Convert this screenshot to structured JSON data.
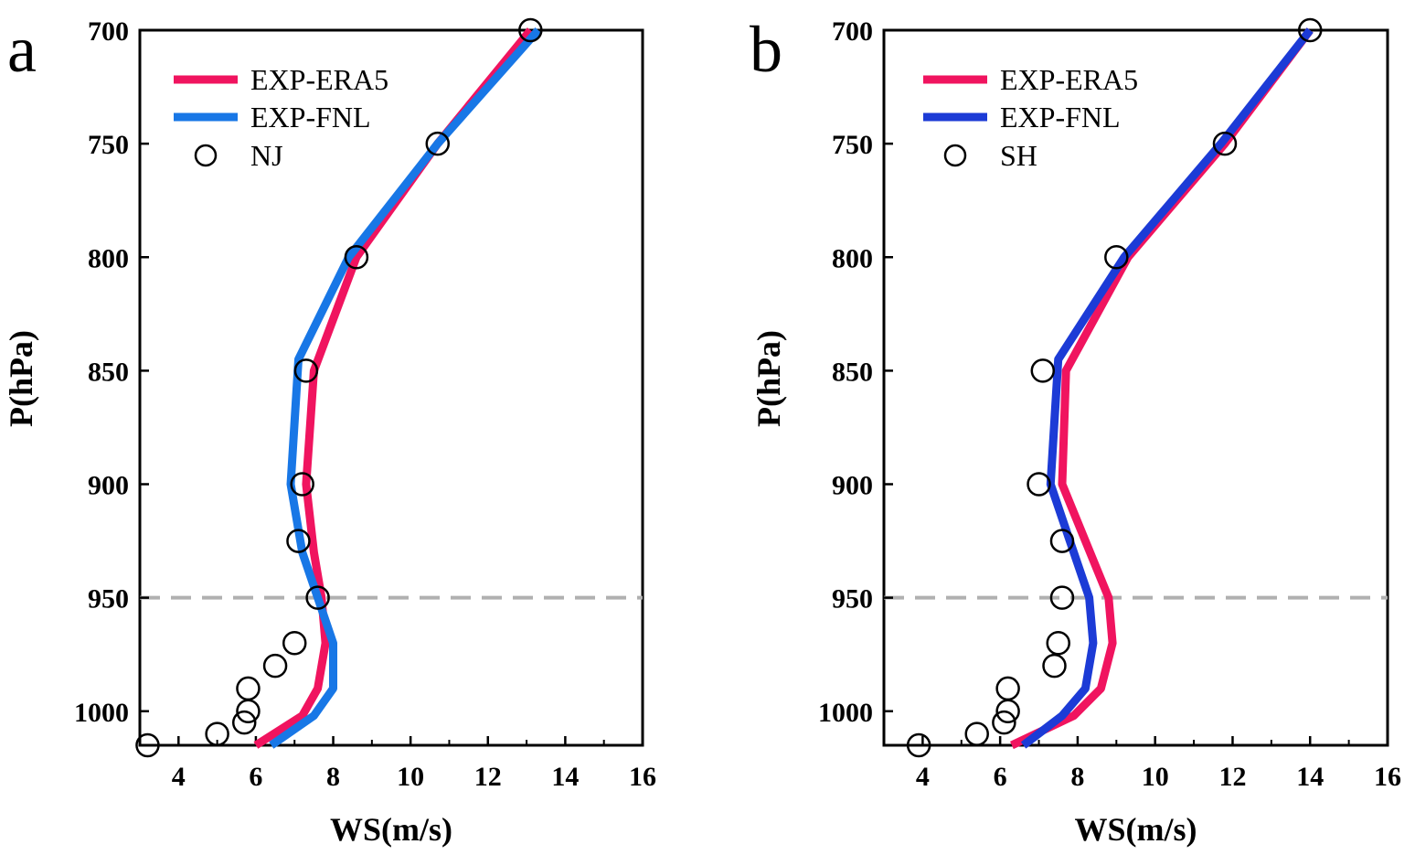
{
  "chart_data": [
    {
      "type": "line",
      "panel_label": "a",
      "xlabel": "WS(m/s)",
      "ylabel": "P(hPa)",
      "xlim": [
        3,
        16
      ],
      "ylim": [
        1015,
        700
      ],
      "y_reversed": true,
      "xticks": [
        4,
        6,
        8,
        10,
        12,
        14,
        16
      ],
      "yticks": [
        700,
        750,
        800,
        850,
        900,
        950,
        1000
      ],
      "reference_line": {
        "y": 950,
        "style": "dashed",
        "color": "#b0b0b0"
      },
      "legend_position": "top-left",
      "series": [
        {
          "name": "EXP-ERA5",
          "style": "line",
          "color": "#f0145f",
          "points": [
            [
              13.1,
              700
            ],
            [
              10.7,
              750
            ],
            [
              8.6,
              800
            ],
            [
              7.5,
              850
            ],
            [
              7.3,
              900
            ],
            [
              7.5,
              930
            ],
            [
              7.7,
              950
            ],
            [
              7.8,
              970
            ],
            [
              7.6,
              990
            ],
            [
              7.2,
              1002
            ],
            [
              6.0,
              1015
            ]
          ]
        },
        {
          "name": "EXP-FNL",
          "style": "line",
          "color": "#1877e6",
          "points": [
            [
              13.3,
              700
            ],
            [
              10.7,
              750
            ],
            [
              8.4,
              800
            ],
            [
              7.1,
              845
            ],
            [
              6.9,
              900
            ],
            [
              7.2,
              930
            ],
            [
              7.6,
              950
            ],
            [
              8.0,
              970
            ],
            [
              8.0,
              990
            ],
            [
              7.5,
              1002
            ],
            [
              6.4,
              1015
            ]
          ]
        },
        {
          "name": "NJ",
          "style": "marker",
          "marker": "open-circle",
          "color": "#000000",
          "points": [
            [
              13.1,
              700
            ],
            [
              10.7,
              750
            ],
            [
              8.6,
              800
            ],
            [
              7.3,
              850
            ],
            [
              7.2,
              900
            ],
            [
              7.1,
              925
            ],
            [
              7.6,
              950
            ],
            [
              7.0,
              970
            ],
            [
              6.5,
              980
            ],
            [
              5.8,
              990
            ],
            [
              5.8,
              1000
            ],
            [
              5.7,
              1005
            ],
            [
              5.0,
              1010
            ],
            [
              3.2,
              1015
            ]
          ]
        }
      ]
    },
    {
      "type": "line",
      "panel_label": "b",
      "xlabel": "WS(m/s)",
      "ylabel": "P(hPa)",
      "xlim": [
        3,
        16
      ],
      "ylim": [
        1015,
        700
      ],
      "y_reversed": true,
      "xticks": [
        4,
        6,
        8,
        10,
        12,
        14,
        16
      ],
      "yticks": [
        700,
        750,
        800,
        850,
        900,
        950,
        1000
      ],
      "reference_line": {
        "y": 950,
        "style": "dashed",
        "color": "#b0b0b0"
      },
      "legend_position": "top-left",
      "series": [
        {
          "name": "EXP-ERA5",
          "style": "line",
          "color": "#f0145f",
          "points": [
            [
              14.0,
              700
            ],
            [
              11.8,
              750
            ],
            [
              9.3,
              800
            ],
            [
              7.7,
              850
            ],
            [
              7.6,
              900
            ],
            [
              8.2,
              925
            ],
            [
              8.8,
              950
            ],
            [
              8.9,
              970
            ],
            [
              8.6,
              990
            ],
            [
              7.9,
              1002
            ],
            [
              6.3,
              1015
            ]
          ]
        },
        {
          "name": "EXP-FNL",
          "style": "line",
          "color": "#1c3bd6",
          "points": [
            [
              14.0,
              700
            ],
            [
              11.7,
              750
            ],
            [
              9.2,
              800
            ],
            [
              7.5,
              845
            ],
            [
              7.3,
              900
            ],
            [
              7.8,
              925
            ],
            [
              8.3,
              950
            ],
            [
              8.4,
              970
            ],
            [
              8.2,
              990
            ],
            [
              7.6,
              1002
            ],
            [
              6.6,
              1015
            ]
          ]
        },
        {
          "name": "SH",
          "style": "marker",
          "marker": "open-circle",
          "color": "#000000",
          "points": [
            [
              14.0,
              700
            ],
            [
              11.8,
              750
            ],
            [
              9.0,
              800
            ],
            [
              7.1,
              850
            ],
            [
              7.0,
              900
            ],
            [
              7.6,
              925
            ],
            [
              7.6,
              950
            ],
            [
              7.5,
              970
            ],
            [
              7.4,
              980
            ],
            [
              6.2,
              990
            ],
            [
              6.2,
              1000
            ],
            [
              6.1,
              1005
            ],
            [
              5.4,
              1010
            ],
            [
              3.9,
              1015
            ]
          ]
        }
      ]
    }
  ]
}
